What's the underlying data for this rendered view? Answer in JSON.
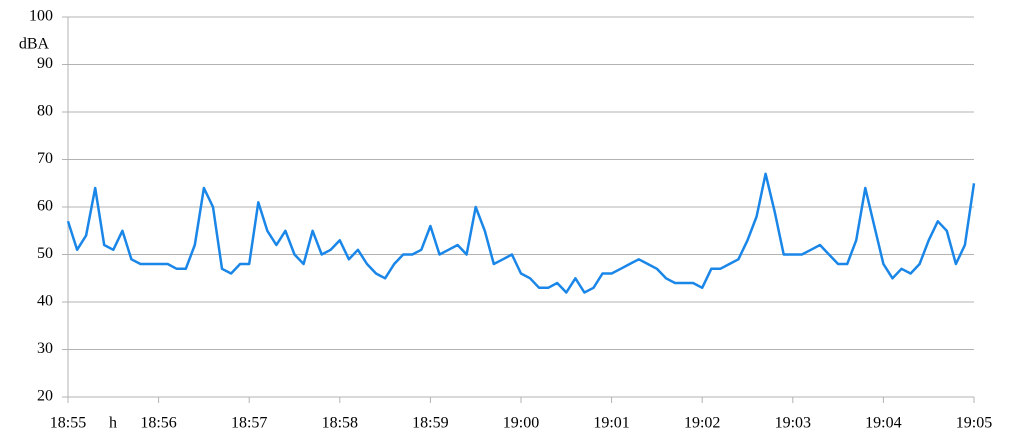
{
  "chart_data": {
    "type": "line",
    "y_label": "dBA",
    "x_label": "h",
    "categories": [
      "18:55",
      null,
      null,
      null,
      null,
      null,
      null,
      null,
      null,
      null,
      "18:56",
      null,
      null,
      null,
      null,
      null,
      null,
      null,
      null,
      null,
      "18:57",
      null,
      null,
      null,
      null,
      null,
      null,
      null,
      null,
      null,
      "18:58",
      null,
      null,
      null,
      null,
      null,
      null,
      null,
      null,
      null,
      "18:59",
      null,
      null,
      null,
      null,
      null,
      null,
      null,
      null,
      null,
      "19:00",
      null,
      null,
      null,
      null,
      null,
      null,
      null,
      null,
      null,
      "19:01",
      null,
      null,
      null,
      null,
      null,
      null,
      null,
      null,
      null,
      "19:02",
      null,
      null,
      null,
      null,
      null,
      null,
      null,
      null,
      null,
      "19:03",
      null,
      null,
      null,
      null,
      null,
      null,
      null,
      null,
      null,
      "19:04",
      null,
      null,
      null,
      null,
      null,
      null,
      null,
      null,
      null,
      "19:05"
    ],
    "values": [
      57,
      51,
      54,
      64,
      52,
      51,
      55,
      49,
      48,
      48,
      48,
      48,
      47,
      47,
      52,
      64,
      60,
      47,
      46,
      48,
      48,
      61,
      55,
      52,
      55,
      50,
      48,
      55,
      50,
      51,
      53,
      49,
      51,
      48,
      46,
      45,
      48,
      50,
      50,
      51,
      56,
      50,
      51,
      52,
      50,
      60,
      55,
      48,
      49,
      50,
      46,
      45,
      43,
      43,
      44,
      42,
      45,
      42,
      43,
      46,
      46,
      47,
      48,
      49,
      48,
      47,
      45,
      44,
      44,
      44,
      43,
      47,
      47,
      48,
      49,
      53,
      58,
      67,
      59,
      50,
      50,
      50,
      51,
      52,
      50,
      48,
      48,
      53,
      64,
      56,
      48,
      45,
      47,
      46,
      48,
      53,
      57,
      55,
      48,
      52,
      65
    ],
    "color": "#1a86e8",
    "ylim": [
      20,
      100
    ],
    "yticks": [
      20,
      30,
      40,
      50,
      60,
      70,
      80,
      90,
      100
    ],
    "grid": true
  }
}
